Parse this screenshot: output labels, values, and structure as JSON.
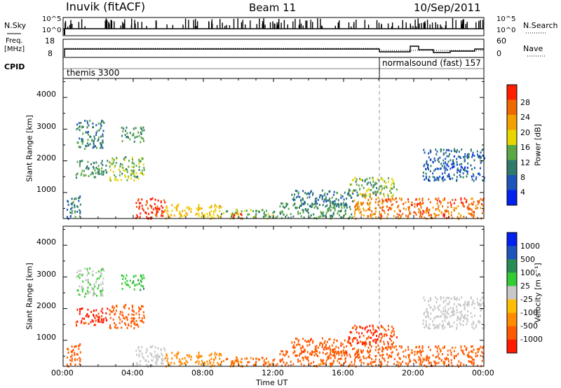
{
  "header": {
    "left": "Inuvik (fitACF)",
    "center": "Beam 11",
    "right": "10/Sep/2011"
  },
  "nsky": {
    "label": "N.Sky",
    "tick_top": "10^5",
    "tick_bottom": "10^0",
    "right_label": "N.Search",
    "right_tick_top": "10^5",
    "right_tick_bottom": "10^0"
  },
  "freq": {
    "label_top": "Freq.",
    "label_unit": "[MHz]",
    "left_tick_top": "18",
    "left_tick_bottom": "8",
    "right_label": "Nave",
    "right_tick_top": "60",
    "right_tick_bottom": "0"
  },
  "cpid": {
    "label": "CPID",
    "mode1": "themis 3300",
    "mode2": "normalsound (fast) 157"
  },
  "colors": {
    "power": [
      "#0022ee",
      "#1e55bb",
      "#2f7a6a",
      "#5aa845",
      "#e8d600",
      "#f2a200",
      "#ee6a00",
      "#ff1f00"
    ],
    "velocity": [
      "#ff1a00",
      "#ff5a00",
      "#ff8c00",
      "#ffbf00",
      "#c8c8c8",
      "#33cc33",
      "#2a8c55",
      "#1e55bb",
      "#0022ee"
    ]
  },
  "chart_data": [
    {
      "type": "heatmap",
      "title": "",
      "ylabel": "Slant Range [km]",
      "xlabel": "",
      "ylim": [
        180,
        4600
      ],
      "yticks": [
        "1000",
        "2000",
        "3000",
        "4000"
      ],
      "colorbar": {
        "label": "Power [dB]",
        "range": [
          0,
          32
        ],
        "ticks": [
          "4",
          "8",
          "12",
          "16",
          "20",
          "24",
          "28"
        ]
      },
      "blobs": [
        {
          "x": [
            0.2,
            1.0
          ],
          "y": [
            200,
            950
          ],
          "v": 9
        },
        {
          "x": [
            0.7,
            2.3
          ],
          "y": [
            2400,
            3300
          ],
          "v": 10
        },
        {
          "x": [
            0.7,
            2.5
          ],
          "y": [
            1500,
            2050
          ],
          "v": 12
        },
        {
          "x": [
            2.6,
            4.6
          ],
          "y": [
            1400,
            2150
          ],
          "v": 15
        },
        {
          "x": [
            3.3,
            4.6
          ],
          "y": [
            2600,
            3100
          ],
          "v": 12
        },
        {
          "x": [
            4.1,
            5.8
          ],
          "y": [
            200,
            850
          ],
          "v": 30
        },
        {
          "x": [
            5.8,
            9.0
          ],
          "y": [
            200,
            650
          ],
          "v": 20
        },
        {
          "x": [
            9.0,
            12.0
          ],
          "y": [
            200,
            500
          ],
          "v": 14
        },
        {
          "x": [
            9.6,
            10.2
          ],
          "y": [
            200,
            450
          ],
          "v": 30
        },
        {
          "x": [
            12.0,
            16.5
          ],
          "y": [
            200,
            700
          ],
          "v": 12
        },
        {
          "x": [
            13.0,
            16.5
          ],
          "y": [
            600,
            1100
          ],
          "v": 9
        },
        {
          "x": [
            16.5,
            18.2
          ],
          "y": [
            200,
            1000
          ],
          "v": 24
        },
        {
          "x": [
            18.0,
            24.0
          ],
          "y": [
            200,
            850
          ],
          "v": 26
        },
        {
          "x": [
            16.2,
            19.0
          ],
          "y": [
            900,
            1500
          ],
          "v": 14
        },
        {
          "x": [
            20.5,
            24.0
          ],
          "y": [
            1400,
            2400
          ],
          "v": 7
        }
      ]
    },
    {
      "type": "heatmap",
      "title": "",
      "ylabel": "Slant Range [km]",
      "xlabel": "Time UT",
      "x_ticks": [
        "00:00",
        "04:00",
        "08:00",
        "12:00",
        "16:00",
        "20:00",
        "00:00"
      ],
      "ylim": [
        180,
        4600
      ],
      "yticks": [
        "1000",
        "2000",
        "3000",
        "4000"
      ],
      "colorbar": {
        "label": "Velocity [m s⁻¹]",
        "range": [
          -1200,
          1200
        ],
        "ticks": [
          "1000",
          "500",
          "100",
          "25",
          "-25",
          "-100",
          "-500",
          "-1000"
        ]
      },
      "blobs": [
        {
          "x": [
            0.2,
            1.0
          ],
          "y": [
            200,
            950
          ],
          "v": -150
        },
        {
          "x": [
            0.7,
            2.3
          ],
          "y": [
            2400,
            3300
          ],
          "v": 20
        },
        {
          "x": [
            0.7,
            2.5
          ],
          "y": [
            1500,
            2050
          ],
          "v": -600
        },
        {
          "x": [
            2.6,
            4.6
          ],
          "y": [
            1400,
            2150
          ],
          "v": -300
        },
        {
          "x": [
            3.3,
            4.6
          ],
          "y": [
            2600,
            3100
          ],
          "v": 80
        },
        {
          "x": [
            4.1,
            5.8
          ],
          "y": [
            200,
            850
          ],
          "v": 0
        },
        {
          "x": [
            5.8,
            9.0
          ],
          "y": [
            200,
            650
          ],
          "v": -60
        },
        {
          "x": [
            9.0,
            12.0
          ],
          "y": [
            200,
            500
          ],
          "v": -120
        },
        {
          "x": [
            9.6,
            10.2
          ],
          "y": [
            200,
            450
          ],
          "v": -80
        },
        {
          "x": [
            12.0,
            16.5
          ],
          "y": [
            200,
            700
          ],
          "v": -150
        },
        {
          "x": [
            13.0,
            16.5
          ],
          "y": [
            600,
            1100
          ],
          "v": -400
        },
        {
          "x": [
            16.5,
            18.2
          ],
          "y": [
            200,
            1000
          ],
          "v": -250
        },
        {
          "x": [
            18.0,
            24.0
          ],
          "y": [
            200,
            850
          ],
          "v": -150
        },
        {
          "x": [
            16.2,
            19.0
          ],
          "y": [
            900,
            1500
          ],
          "v": -500
        },
        {
          "x": [
            20.5,
            24.0
          ],
          "y": [
            1400,
            2400
          ],
          "v": 0
        }
      ]
    }
  ]
}
